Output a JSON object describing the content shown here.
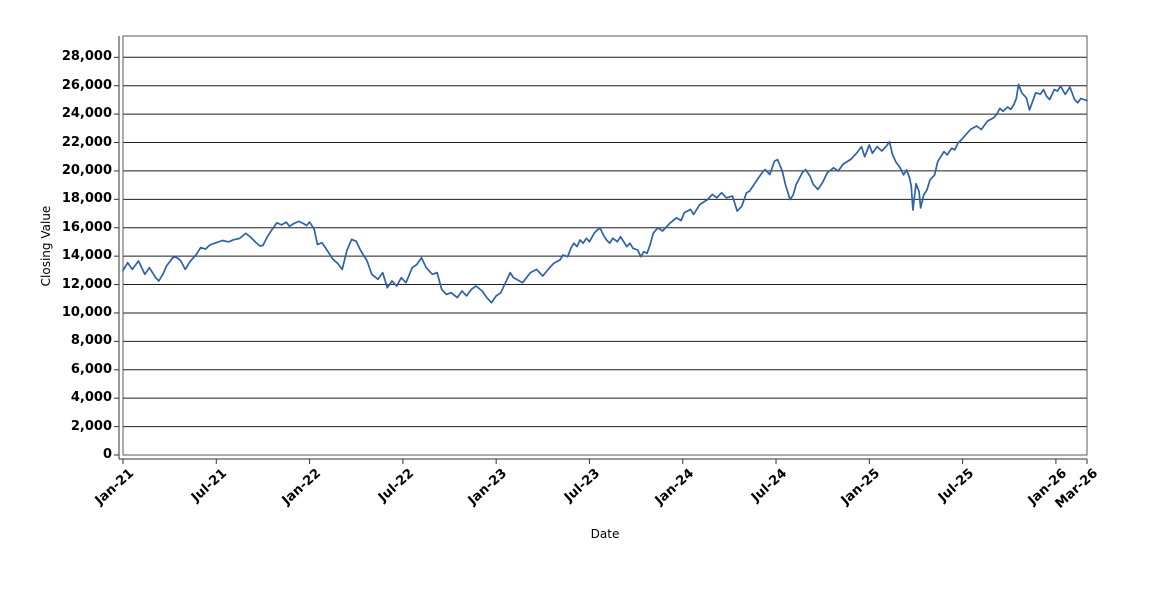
{
  "chart_data": {
    "type": "line",
    "title": "",
    "xlabel": "Date",
    "ylabel": "Closing Value",
    "x_unit": "months since Jan-2021",
    "xlim": [
      0,
      62
    ],
    "ylim": [
      0,
      29500
    ],
    "grid": "horizontal-only",
    "legend": "none",
    "background_color": "#ffffff",
    "gridline_color": "#1f1f1f",
    "border_color": "#595959",
    "axis_color": "#333333",
    "x_ticks": [
      {
        "m": 0,
        "label": "Jan-21"
      },
      {
        "m": 6,
        "label": "Jul-21"
      },
      {
        "m": 12,
        "label": "Jan-22"
      },
      {
        "m": 18,
        "label": "Jul-22"
      },
      {
        "m": 24,
        "label": "Jan-23"
      },
      {
        "m": 30,
        "label": "Jul-23"
      },
      {
        "m": 36,
        "label": "Jan-24"
      },
      {
        "m": 42,
        "label": "Jul-24"
      },
      {
        "m": 48,
        "label": "Jan-25"
      },
      {
        "m": 54,
        "label": "Jul-25"
      },
      {
        "m": 60,
        "label": "Jan-26"
      },
      {
        "m": 62,
        "label": "Mar-26"
      }
    ],
    "y_ticks": [
      {
        "v": 0,
        "label": "0"
      },
      {
        "v": 2000,
        "label": "2,000"
      },
      {
        "v": 4000,
        "label": "4,000"
      },
      {
        "v": 6000,
        "label": "6,000"
      },
      {
        "v": 8000,
        "label": "8,000"
      },
      {
        "v": 10000,
        "label": "10,000"
      },
      {
        "v": 12000,
        "label": "12,000"
      },
      {
        "v": 14000,
        "label": "14,000"
      },
      {
        "v": 16000,
        "label": "16,000"
      },
      {
        "v": 18000,
        "label": "18,000"
      },
      {
        "v": 20000,
        "label": "20,000"
      },
      {
        "v": 22000,
        "label": "22,000"
      },
      {
        "v": 24000,
        "label": "24,000"
      },
      {
        "v": 26000,
        "label": "26,000"
      },
      {
        "v": 28000,
        "label": "28,000"
      }
    ],
    "series": [
      {
        "name": "Closing Value",
        "color": "#2d61a8",
        "points": [
          [
            0,
            13000
          ],
          [
            0.3,
            13540
          ],
          [
            0.6,
            13070
          ],
          [
            1,
            13660
          ],
          [
            1.4,
            12720
          ],
          [
            1.7,
            13190
          ],
          [
            2.1,
            12480
          ],
          [
            2.3,
            12250
          ],
          [
            2.6,
            12800
          ],
          [
            2.8,
            13310
          ],
          [
            3.2,
            13890
          ],
          [
            3.4,
            13950
          ],
          [
            3.7,
            13700
          ],
          [
            4,
            13070
          ],
          [
            4.3,
            13600
          ],
          [
            4.7,
            14100
          ],
          [
            5,
            14600
          ],
          [
            5.3,
            14500
          ],
          [
            5.6,
            14800
          ],
          [
            6,
            14950
          ],
          [
            6.4,
            15100
          ],
          [
            6.8,
            15000
          ],
          [
            7.1,
            15150
          ],
          [
            7.5,
            15250
          ],
          [
            7.9,
            15600
          ],
          [
            8.2,
            15350
          ],
          [
            8.5,
            15000
          ],
          [
            8.8,
            14720
          ],
          [
            9,
            14750
          ],
          [
            9.3,
            15400
          ],
          [
            9.6,
            15900
          ],
          [
            9.9,
            16350
          ],
          [
            10.2,
            16200
          ],
          [
            10.5,
            16400
          ],
          [
            10.7,
            16100
          ],
          [
            11,
            16300
          ],
          [
            11.3,
            16450
          ],
          [
            11.6,
            16300
          ],
          [
            11.8,
            16150
          ],
          [
            12,
            16400
          ],
          [
            12.3,
            15900
          ],
          [
            12.5,
            14830
          ],
          [
            12.8,
            14950
          ],
          [
            13.2,
            14300
          ],
          [
            13.5,
            13780
          ],
          [
            13.8,
            13500
          ],
          [
            14.1,
            13070
          ],
          [
            14.4,
            14400
          ],
          [
            14.7,
            15180
          ],
          [
            15,
            15050
          ],
          [
            15.3,
            14360
          ],
          [
            15.7,
            13660
          ],
          [
            16,
            12720
          ],
          [
            16.4,
            12370
          ],
          [
            16.7,
            12840
          ],
          [
            17,
            11780
          ],
          [
            17.3,
            12250
          ],
          [
            17.6,
            11900
          ],
          [
            17.9,
            12480
          ],
          [
            18.2,
            12130
          ],
          [
            18.6,
            13190
          ],
          [
            18.9,
            13420
          ],
          [
            19.2,
            13890
          ],
          [
            19.5,
            13190
          ],
          [
            19.9,
            12720
          ],
          [
            20.2,
            12840
          ],
          [
            20.5,
            11660
          ],
          [
            20.8,
            11310
          ],
          [
            21.1,
            11430
          ],
          [
            21.5,
            11080
          ],
          [
            21.8,
            11550
          ],
          [
            22.1,
            11200
          ],
          [
            22.4,
            11660
          ],
          [
            22.7,
            11900
          ],
          [
            23.1,
            11550
          ],
          [
            23.4,
            11080
          ],
          [
            23.7,
            10720
          ],
          [
            24,
            11200
          ],
          [
            24.3,
            11430
          ],
          [
            24.6,
            12130
          ],
          [
            24.9,
            12840
          ],
          [
            25.1,
            12500
          ],
          [
            25.3,
            12370
          ],
          [
            25.7,
            12130
          ],
          [
            26.2,
            12840
          ],
          [
            26.6,
            13070
          ],
          [
            27,
            12600
          ],
          [
            27.4,
            13140
          ],
          [
            27.7,
            13500
          ],
          [
            28.1,
            13730
          ],
          [
            28.3,
            14080
          ],
          [
            28.6,
            13960
          ],
          [
            28.8,
            14550
          ],
          [
            29,
            14910
          ],
          [
            29.2,
            14670
          ],
          [
            29.4,
            15140
          ],
          [
            29.6,
            14910
          ],
          [
            29.8,
            15260
          ],
          [
            30,
            15020
          ],
          [
            30.3,
            15610
          ],
          [
            30.5,
            15840
          ],
          [
            30.7,
            15960
          ],
          [
            30.9,
            15490
          ],
          [
            31.1,
            15140
          ],
          [
            31.3,
            14910
          ],
          [
            31.5,
            15260
          ],
          [
            31.8,
            15020
          ],
          [
            32,
            15370
          ],
          [
            32.2,
            15020
          ],
          [
            32.4,
            14670
          ],
          [
            32.6,
            14910
          ],
          [
            32.8,
            14550
          ],
          [
            33.1,
            14430
          ],
          [
            33.3,
            13960
          ],
          [
            33.5,
            14310
          ],
          [
            33.7,
            14200
          ],
          [
            33.9,
            14790
          ],
          [
            34.1,
            15610
          ],
          [
            34.4,
            16000
          ],
          [
            34.7,
            15770
          ],
          [
            35.2,
            16350
          ],
          [
            35.6,
            16700
          ],
          [
            35.9,
            16500
          ],
          [
            36.1,
            17060
          ],
          [
            36.5,
            17290
          ],
          [
            36.7,
            16940
          ],
          [
            37.1,
            17640
          ],
          [
            37.6,
            17990
          ],
          [
            37.9,
            18350
          ],
          [
            38.2,
            18110
          ],
          [
            38.5,
            18470
          ],
          [
            38.8,
            18110
          ],
          [
            39.2,
            18230
          ],
          [
            39.5,
            17170
          ],
          [
            39.8,
            17520
          ],
          [
            40.1,
            18470
          ],
          [
            40.3,
            18580
          ],
          [
            40.8,
            19400
          ],
          [
            41.1,
            19870
          ],
          [
            41.3,
            20100
          ],
          [
            41.6,
            19750
          ],
          [
            41.9,
            20690
          ],
          [
            42.1,
            20800
          ],
          [
            42.4,
            19990
          ],
          [
            42.6,
            19050
          ],
          [
            42.9,
            17990
          ],
          [
            43.1,
            18300
          ],
          [
            43.3,
            19050
          ],
          [
            43.7,
            19900
          ],
          [
            43.9,
            20100
          ],
          [
            44.2,
            19600
          ],
          [
            44.4,
            19050
          ],
          [
            44.7,
            18700
          ],
          [
            45,
            19200
          ],
          [
            45.3,
            19870
          ],
          [
            45.7,
            20220
          ],
          [
            46,
            19990
          ],
          [
            46.3,
            20460
          ],
          [
            46.8,
            20810
          ],
          [
            47.2,
            21280
          ],
          [
            47.5,
            21710
          ],
          [
            47.7,
            21000
          ],
          [
            48,
            21830
          ],
          [
            48.2,
            21240
          ],
          [
            48.5,
            21710
          ],
          [
            48.8,
            21400
          ],
          [
            49.1,
            21750
          ],
          [
            49.3,
            22060
          ],
          [
            49.5,
            21130
          ],
          [
            49.7,
            20650
          ],
          [
            50,
            20190
          ],
          [
            50.2,
            19720
          ],
          [
            50.4,
            20070
          ],
          [
            50.6,
            19480
          ],
          [
            50.7,
            18900
          ],
          [
            50.8,
            17250
          ],
          [
            51,
            19100
          ],
          [
            51.2,
            18540
          ],
          [
            51.3,
            17400
          ],
          [
            51.5,
            18310
          ],
          [
            51.7,
            18660
          ],
          [
            51.9,
            19370
          ],
          [
            52.2,
            19720
          ],
          [
            52.4,
            20650
          ],
          [
            52.6,
            21000
          ],
          [
            52.8,
            21360
          ],
          [
            53,
            21130
          ],
          [
            53.3,
            21600
          ],
          [
            53.5,
            21480
          ],
          [
            53.7,
            21950
          ],
          [
            53.9,
            22180
          ],
          [
            54.1,
            22420
          ],
          [
            54.5,
            22920
          ],
          [
            54.9,
            23160
          ],
          [
            55.2,
            22920
          ],
          [
            55.6,
            23510
          ],
          [
            56,
            23740
          ],
          [
            56.2,
            24000
          ],
          [
            56.4,
            24400
          ],
          [
            56.6,
            24200
          ],
          [
            56.9,
            24500
          ],
          [
            57.1,
            24330
          ],
          [
            57.3,
            24680
          ],
          [
            57.45,
            25100
          ],
          [
            57.6,
            26100
          ],
          [
            57.8,
            25500
          ],
          [
            58.1,
            25150
          ],
          [
            58.3,
            24300
          ],
          [
            58.7,
            25500
          ],
          [
            59,
            25400
          ],
          [
            59.2,
            25730
          ],
          [
            59.4,
            25250
          ],
          [
            59.6,
            25030
          ],
          [
            59.9,
            25730
          ],
          [
            60.1,
            25620
          ],
          [
            60.3,
            25970
          ],
          [
            60.6,
            25390
          ],
          [
            60.9,
            25900
          ],
          [
            61.2,
            25030
          ],
          [
            61.4,
            24800
          ],
          [
            61.6,
            25100
          ],
          [
            62,
            24950
          ]
        ]
      }
    ]
  }
}
